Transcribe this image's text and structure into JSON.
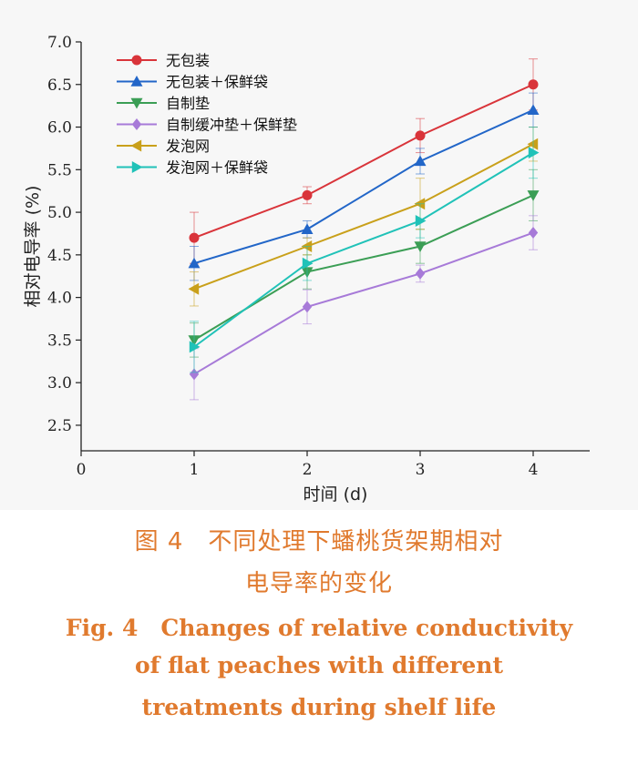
{
  "chart_data": {
    "type": "line",
    "xlabel": "时间 (d)",
    "ylabel": "相对电导率 (%)",
    "xlim": [
      0,
      4.5
    ],
    "ylim": [
      2.2,
      7.0
    ],
    "x_ticks": [
      0,
      1,
      2,
      3,
      4
    ],
    "y_ticks": [
      2.5,
      3.0,
      3.5,
      4.0,
      4.5,
      5.0,
      5.5,
      6.0,
      6.5,
      7.0
    ],
    "y_tick_labels": [
      "2.5",
      "3.0",
      "3.5",
      "4.0",
      "4.5",
      "5.0",
      "5.5",
      "6.0",
      "6.5",
      "7.0"
    ],
    "x": [
      1,
      2,
      3,
      4
    ],
    "legend_position": "top-left",
    "grid": false,
    "series": [
      {
        "name": "无包装",
        "color": "#d9343a",
        "marker": "circle",
        "values": [
          4.7,
          5.2,
          5.9,
          6.5
        ],
        "errors": [
          0.3,
          0.1,
          0.2,
          0.3
        ]
      },
      {
        "name": "无包装＋保鲜袋",
        "color": "#2266c8",
        "marker": "triangle-up",
        "values": [
          4.4,
          4.8,
          5.6,
          6.2
        ],
        "errors": [
          0.2,
          0.1,
          0.15,
          0.2
        ]
      },
      {
        "name": "自制垫",
        "color": "#3b9e55",
        "marker": "triangle-down",
        "values": [
          3.5,
          4.3,
          4.6,
          5.2
        ],
        "errors": [
          0.2,
          0.2,
          0.2,
          0.3
        ]
      },
      {
        "name": "自制缓冲垫＋保鲜垫",
        "color": "#a77ad8",
        "marker": "diamond",
        "values": [
          3.1,
          3.89,
          4.28,
          4.76
        ],
        "errors": [
          0.3,
          0.2,
          0.1,
          0.2
        ]
      },
      {
        "name": "发泡网",
        "color": "#c9a01a",
        "marker": "triangle-left",
        "values": [
          4.1,
          4.6,
          5.1,
          5.8
        ],
        "errors": [
          0.2,
          0.1,
          0.3,
          0.2
        ]
      },
      {
        "name": "发泡网＋保鲜袋",
        "color": "#20c2b8",
        "marker": "triangle-right",
        "values": [
          3.42,
          4.4,
          4.9,
          5.7
        ],
        "errors": [
          0.3,
          0.2,
          0.2,
          0.3
        ]
      }
    ]
  },
  "caption": {
    "cn_line1": "图 4　不同处理下蟠桃货架期相对",
    "cn_line2": "电导率的变化",
    "en_line1": "Fig. 4　Changes of relative conductivity",
    "en_line2": "of flat peaches with different",
    "en_line3": "treatments during shelf life"
  }
}
